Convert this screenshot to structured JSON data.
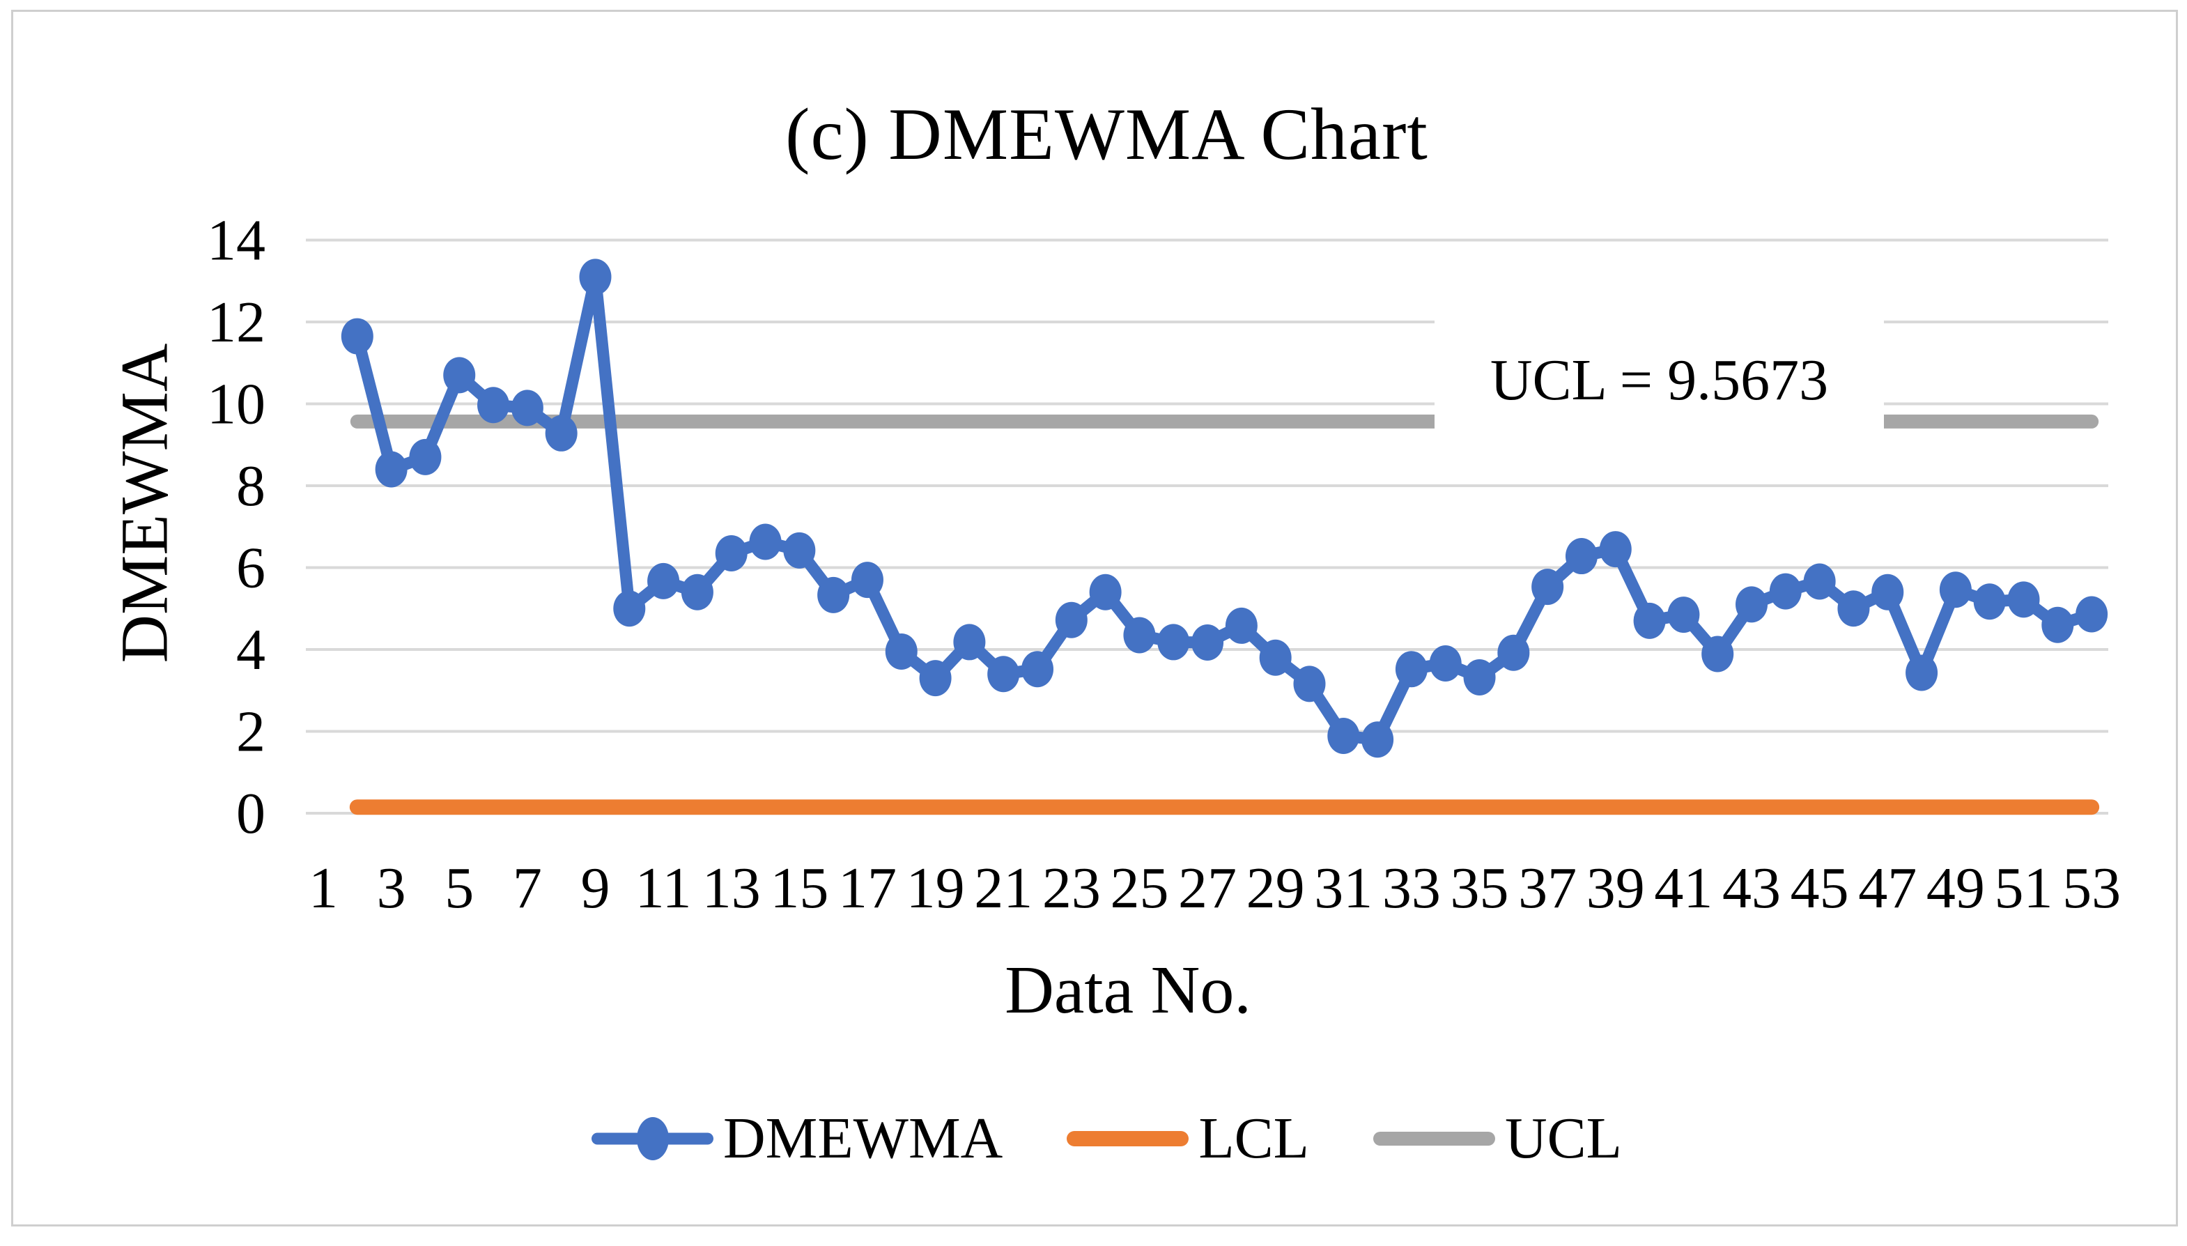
{
  "chart_data": {
    "type": "line",
    "title": "(c) DMEWMA Chart",
    "xlabel": "Data No.",
    "ylabel": "DMEWMA",
    "ylim": [
      0,
      14
    ],
    "y_ticks": [
      0,
      2,
      4,
      6,
      8,
      10,
      12,
      14
    ],
    "x_ticks": [
      1,
      3,
      5,
      7,
      9,
      11,
      13,
      15,
      17,
      19,
      21,
      23,
      25,
      27,
      29,
      31,
      33,
      35,
      37,
      39,
      41,
      43,
      45,
      47,
      49,
      51,
      53
    ],
    "grid": "horizontal",
    "legend_position": "bottom",
    "series": [
      {
        "name": "DMEWMA",
        "x_first": 2,
        "values": [
          11.65,
          8.4,
          8.7,
          10.7,
          9.97,
          9.9,
          9.28,
          13.1,
          5.0,
          5.67,
          5.4,
          6.35,
          6.63,
          6.42,
          5.33,
          5.7,
          3.95,
          3.3,
          4.18,
          3.4,
          3.52,
          4.72,
          5.4,
          4.35,
          4.18,
          4.17,
          4.58,
          3.8,
          3.16,
          1.89,
          1.8,
          3.52,
          3.66,
          3.32,
          3.92,
          5.53,
          6.28,
          6.45,
          4.7,
          4.85,
          3.89,
          5.1,
          5.42,
          5.66,
          5.0,
          5.4,
          3.43,
          5.46,
          5.17,
          5.22,
          4.6,
          4.86
        ]
      },
      {
        "name": "LCL",
        "constant_value": 0.15,
        "x_range": [
          2,
          53
        ]
      },
      {
        "name": "UCL",
        "constant_value": 9.5673,
        "x_range": [
          2,
          53
        ]
      }
    ],
    "annotation": {
      "text": "UCL = 9.5673"
    },
    "colors": {
      "dmewma": "#4472C4",
      "lcl": "#ED7D31",
      "ucl": "#A6A6A6",
      "gridline": "#D9D9D9",
      "text": "#000000"
    }
  },
  "legend": {
    "items": [
      {
        "label": "DMEWMA"
      },
      {
        "label": "LCL"
      },
      {
        "label": "UCL"
      }
    ]
  }
}
